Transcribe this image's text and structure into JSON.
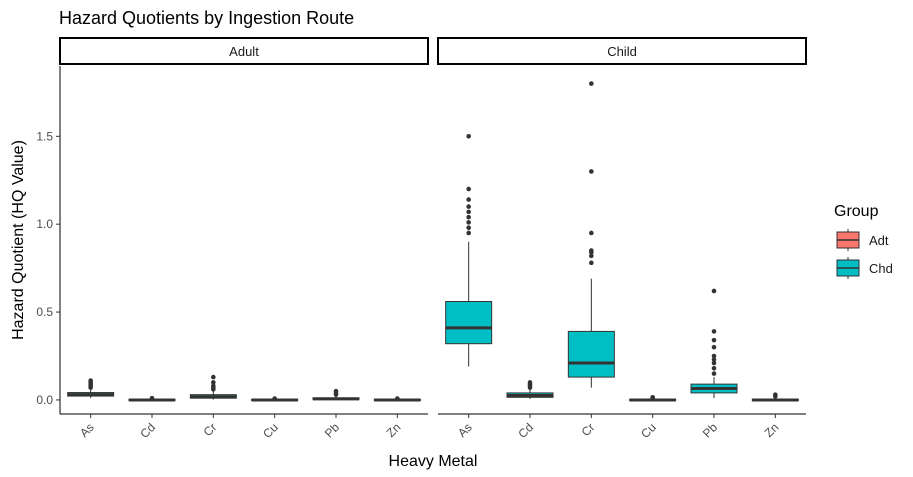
{
  "chart_data": {
    "type": "boxplot",
    "title": "Hazard Quotients by Ingestion Route",
    "xlabel": "Heavy Metal",
    "ylabel": "Hazard Quotient (HQ Value)",
    "ylim": [
      -0.08,
      1.9
    ],
    "y_ticks": [
      0.0,
      0.5,
      1.0,
      1.5
    ],
    "y_tick_labels": [
      "0.0",
      "0.5",
      "1.0",
      "1.5"
    ],
    "categories": [
      "As",
      "Cd",
      "Cr",
      "Cu",
      "Pb",
      "Zn"
    ],
    "grid": false,
    "legend": {
      "title": "Group",
      "placement": "right",
      "entries": [
        {
          "name": "Adt",
          "color": "#F8766D"
        },
        {
          "name": "Chd",
          "color": "#00BFC4"
        }
      ]
    },
    "panels": [
      {
        "label": "Adult",
        "boxes": [
          {
            "category": "As",
            "q1": 0.022,
            "median": 0.03,
            "q3": 0.042,
            "whisker_low": 0.01,
            "whisker_high": 0.06,
            "outliers": [
              0.07,
              0.08,
              0.09,
              0.1,
              0.11
            ],
            "color": "#00BFC4"
          },
          {
            "category": "Cd",
            "q1": -0.004,
            "median": 0.0,
            "q3": 0.004,
            "whisker_low": -0.006,
            "whisker_high": 0.006,
            "outliers": [
              0.01
            ],
            "color": "#00BFC4"
          },
          {
            "category": "Cr",
            "q1": 0.01,
            "median": 0.018,
            "q3": 0.03,
            "whisker_low": 0.002,
            "whisker_high": 0.05,
            "outliers": [
              0.06,
              0.07,
              0.08,
              0.1,
              0.13
            ],
            "color": "#00BFC4"
          },
          {
            "category": "Cu",
            "q1": -0.004,
            "median": 0.0,
            "q3": 0.004,
            "whisker_low": -0.006,
            "whisker_high": 0.006,
            "outliers": [
              0.008
            ],
            "color": "#00BFC4"
          },
          {
            "category": "Pb",
            "q1": 0.002,
            "median": 0.006,
            "q3": 0.012,
            "whisker_low": 0.0,
            "whisker_high": 0.02,
            "outliers": [
              0.03,
              0.04,
              0.05
            ],
            "color": "#00BFC4"
          },
          {
            "category": "Zn",
            "q1": -0.004,
            "median": 0.0,
            "q3": 0.004,
            "whisker_low": -0.006,
            "whisker_high": 0.006,
            "outliers": [
              0.008
            ],
            "color": "#00BFC4"
          }
        ]
      },
      {
        "label": "Child",
        "boxes": [
          {
            "category": "As",
            "q1": 0.32,
            "median": 0.41,
            "q3": 0.56,
            "whisker_low": 0.19,
            "whisker_high": 0.9,
            "outliers": [
              0.95,
              0.98,
              1.01,
              1.04,
              1.07,
              1.1,
              1.14,
              1.2,
              1.5
            ],
            "color": "#00BFC4"
          },
          {
            "category": "Cd",
            "q1": 0.015,
            "median": 0.025,
            "q3": 0.04,
            "whisker_low": 0.005,
            "whisker_high": 0.06,
            "outliers": [
              0.07,
              0.08,
              0.09,
              0.1
            ],
            "color": "#00BFC4"
          },
          {
            "category": "Cr",
            "q1": 0.13,
            "median": 0.21,
            "q3": 0.39,
            "whisker_low": 0.07,
            "whisker_high": 0.69,
            "outliers": [
              0.78,
              0.82,
              0.84,
              0.85,
              0.95,
              1.3,
              1.8
            ],
            "color": "#00BFC4"
          },
          {
            "category": "Cu",
            "q1": -0.004,
            "median": 0.0,
            "q3": 0.004,
            "whisker_low": -0.006,
            "whisker_high": 0.006,
            "outliers": [
              0.01,
              0.015
            ],
            "color": "#00BFC4"
          },
          {
            "category": "Pb",
            "q1": 0.04,
            "median": 0.065,
            "q3": 0.09,
            "whisker_low": 0.01,
            "whisker_high": 0.13,
            "outliers": [
              0.15,
              0.18,
              0.21,
              0.23,
              0.25,
              0.3,
              0.34,
              0.39,
              0.62
            ],
            "color": "#00BFC4"
          },
          {
            "category": "Zn",
            "q1": -0.004,
            "median": 0.0,
            "q3": 0.004,
            "whisker_low": -0.006,
            "whisker_high": 0.015,
            "outliers": [
              0.02,
              0.03
            ],
            "color": "#00BFC4"
          }
        ]
      }
    ]
  }
}
